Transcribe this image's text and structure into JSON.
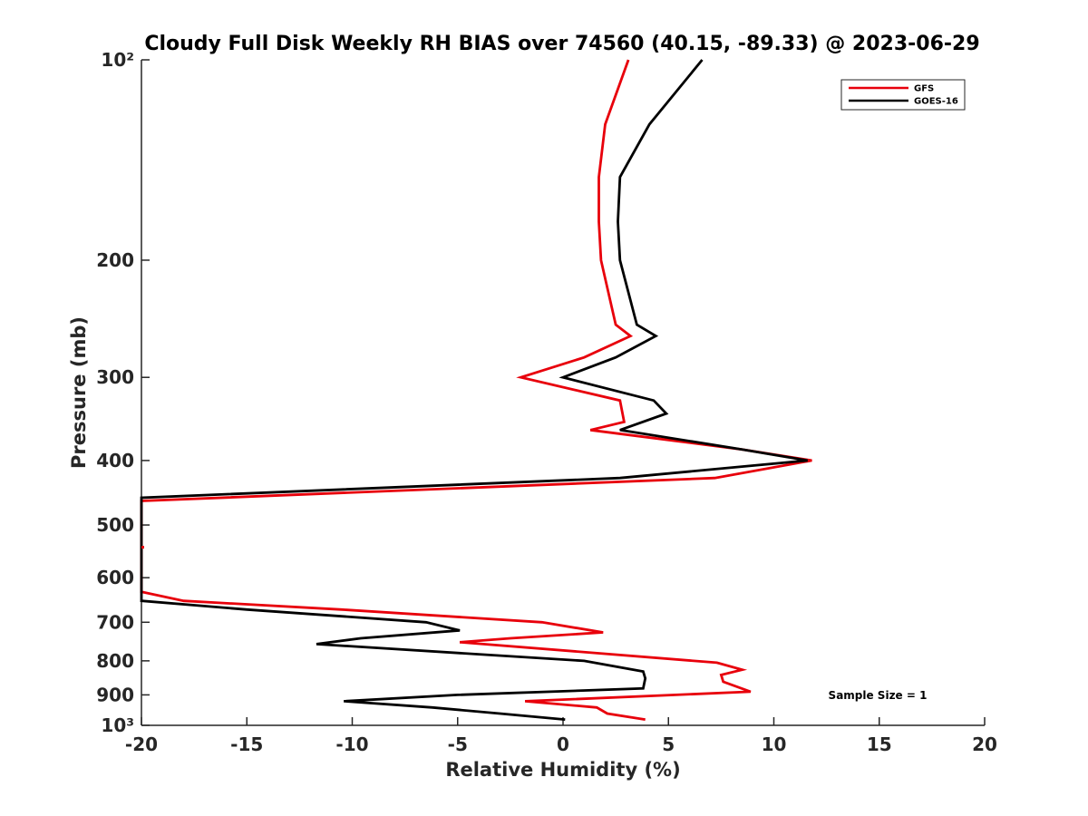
{
  "chart_data": {
    "type": "line",
    "title": "Cloudy Full Disk Weekly RH BIAS over 74560 (40.15, -89.33) @ 2023-06-29",
    "xlabel": "Relative Humidity (%)",
    "ylabel": "Pressure (mb)",
    "xlim": [
      -20,
      20
    ],
    "ylim": [
      100,
      1000
    ],
    "yscale": "log",
    "yreversed": true,
    "grid": false,
    "legend_position": "top-right",
    "xticks": [
      -20,
      -15,
      -10,
      -5,
      0,
      5,
      10,
      15,
      20
    ],
    "xtick_labels": [
      "-20",
      "-15",
      "-10",
      "-5",
      "0",
      "5",
      "10",
      "15",
      "20"
    ],
    "yticks": [
      100,
      200,
      300,
      400,
      500,
      600,
      700,
      800,
      900,
      1000
    ],
    "ytick_labels": [
      "10²",
      "200",
      "300",
      "400",
      "500",
      "600",
      "700",
      "800",
      "900",
      "10³"
    ],
    "annotation": "Sample Size = 1",
    "series": [
      {
        "name": "GFS",
        "color": "#e8000b",
        "points": [
          [
            3.1,
            100
          ],
          [
            2.0,
            125
          ],
          [
            1.7,
            150
          ],
          [
            1.7,
            175
          ],
          [
            1.8,
            200
          ],
          [
            2.5,
            250
          ],
          [
            3.2,
            260
          ],
          [
            1.0,
            280
          ],
          [
            -2.0,
            300
          ],
          [
            2.7,
            325
          ],
          [
            2.9,
            350
          ],
          [
            1.3,
            360
          ],
          [
            8.5,
            385
          ],
          [
            11.8,
            400
          ],
          [
            7.2,
            425
          ],
          [
            -20.0,
            460
          ],
          [
            -20.0,
            540
          ],
          [
            -20.0,
            630
          ],
          [
            -18.0,
            650
          ],
          [
            -10.5,
            670
          ],
          [
            -1.0,
            700
          ],
          [
            1.9,
            725
          ],
          [
            -2.5,
            740
          ],
          [
            -4.9,
            750
          ],
          [
            7.3,
            805
          ],
          [
            8.5,
            825
          ],
          [
            7.5,
            840
          ],
          [
            7.6,
            860
          ],
          [
            8.9,
            890
          ],
          [
            -1.8,
            920
          ],
          [
            1.6,
            940
          ],
          [
            2.1,
            960
          ],
          [
            3.9,
            980
          ]
        ]
      },
      {
        "name": "GOES-16",
        "color": "#000000",
        "points": [
          [
            6.6,
            100
          ],
          [
            4.1,
            125
          ],
          [
            2.7,
            150
          ],
          [
            2.6,
            175
          ],
          [
            2.7,
            200
          ],
          [
            3.5,
            250
          ],
          [
            4.4,
            260
          ],
          [
            2.5,
            280
          ],
          [
            0.0,
            300
          ],
          [
            4.3,
            325
          ],
          [
            4.9,
            340
          ],
          [
            2.7,
            360
          ],
          [
            8.5,
            385
          ],
          [
            11.6,
            400
          ],
          [
            2.7,
            425
          ],
          [
            -20.0,
            455
          ],
          [
            -20.0,
            650
          ],
          [
            -15.0,
            670
          ],
          [
            -6.5,
            700
          ],
          [
            -4.9,
            720
          ],
          [
            -9.6,
            740
          ],
          [
            -11.7,
            755
          ],
          [
            1.0,
            800
          ],
          [
            3.8,
            830
          ],
          [
            3.9,
            850
          ],
          [
            3.8,
            880
          ],
          [
            -5.0,
            900
          ],
          [
            -10.4,
            920
          ],
          [
            -6.2,
            940
          ],
          [
            -3.0,
            960
          ],
          [
            0.1,
            980
          ]
        ]
      }
    ]
  }
}
